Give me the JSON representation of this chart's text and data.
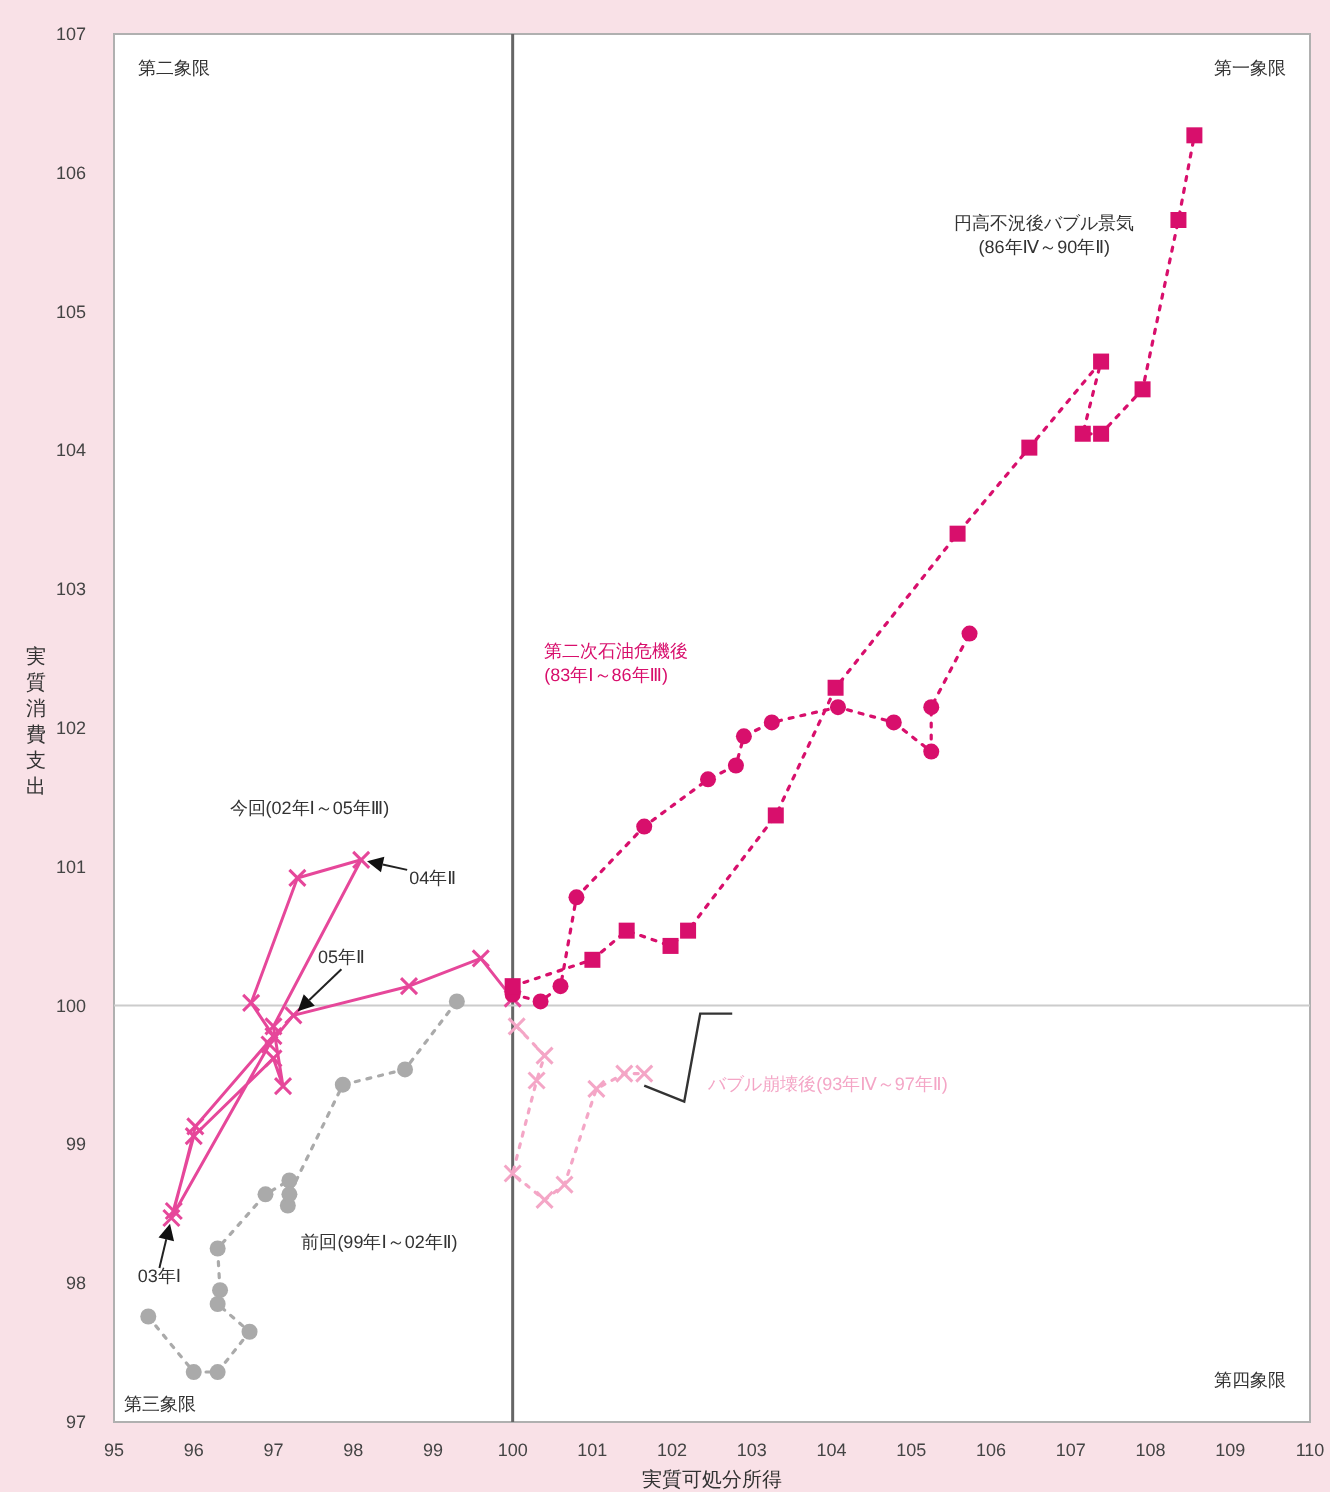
{
  "chart_data": {
    "type": "line",
    "xlabel": "実質可処分所得",
    "ylabel": "実質消費支出",
    "xlim": [
      95,
      110
    ],
    "ylim": [
      97,
      107
    ],
    "xticks": [
      95,
      96,
      97,
      98,
      99,
      100,
      101,
      102,
      103,
      104,
      105,
      106,
      107,
      108,
      109,
      110
    ],
    "yticks": [
      97,
      98,
      99,
      100,
      101,
      102,
      103,
      104,
      105,
      106,
      107
    ],
    "ref_lines": [
      {
        "axis": "x",
        "value": 100,
        "color": "#666666"
      },
      {
        "axis": "y",
        "value": 100,
        "color": "#cccccc"
      }
    ],
    "annotations": [
      "第二象限",
      "第一象限",
      "第三象限",
      "第四象限",
      {
        "text": "04年Ⅱ",
        "x": 98.1,
        "y": 101.05
      },
      {
        "text": "05年Ⅱ",
        "x": 97.25,
        "y": 99.93
      },
      {
        "text": "03年Ⅰ",
        "x": 95.72,
        "y": 98.47
      }
    ],
    "series": [
      {
        "name": "今回(02年Ⅰ～05年Ⅲ)",
        "color": "#e6479a",
        "marker": "cross",
        "line_style": "solid",
        "x": [
          95.75,
          96.02,
          97.0,
          96.72,
          97.3,
          98.1,
          97.0,
          97.12,
          97.0,
          96.0,
          95.72,
          96.95,
          97.25,
          98.7,
          99.6,
          100.0
        ],
        "values": [
          98.52,
          99.13,
          99.78,
          100.02,
          100.92,
          101.05,
          99.85,
          99.42,
          99.62,
          99.06,
          98.47,
          99.72,
          99.93,
          100.14,
          100.34,
          100.05
        ]
      },
      {
        "name": "前回(99年Ⅰ～02年Ⅱ)",
        "color": "#aaaaaa",
        "marker": "circle",
        "line_style": "dotted",
        "x": [
          95.43,
          96.0,
          96.3,
          96.7,
          96.3,
          96.33,
          96.3,
          96.9,
          97.2,
          97.18,
          97.2,
          97.87,
          98.65,
          99.3
        ],
        "values": [
          97.76,
          97.36,
          97.36,
          97.65,
          97.85,
          97.95,
          98.25,
          98.64,
          98.74,
          98.56,
          98.64,
          99.43,
          99.54,
          100.03
        ]
      },
      {
        "name": "第二次石油危機後\n(83年Ⅰ～86年Ⅲ)",
        "color": "#d80f6c",
        "marker": "circle",
        "line_style": "dotted",
        "x": [
          100.0,
          100.35,
          100.6,
          100.8,
          101.65,
          102.45,
          102.8,
          102.9,
          103.25,
          104.08,
          104.78,
          105.25,
          105.25,
          105.73
        ],
        "values": [
          100.08,
          100.03,
          100.14,
          100.78,
          101.29,
          101.63,
          101.73,
          101.94,
          102.04,
          102.15,
          102.04,
          101.83,
          102.15,
          102.68
        ]
      },
      {
        "name": "円高不況後バブル景気\n(86年Ⅳ～90年Ⅱ)",
        "color": "#d80f6c",
        "marker": "square",
        "line_style": "dotted",
        "x": [
          100.0,
          101.0,
          101.43,
          101.98,
          102.2,
          103.3,
          104.05,
          105.58,
          106.48,
          107.38,
          107.15,
          107.38,
          107.9,
          108.35,
          108.55
        ],
        "values": [
          100.14,
          100.33,
          100.54,
          100.43,
          100.54,
          101.37,
          102.29,
          103.4,
          104.02,
          104.64,
          104.12,
          104.12,
          104.44,
          105.66,
          106.27
        ]
      },
      {
        "name": "バブル崩壊後(93年Ⅳ～97年Ⅱ)",
        "color": "#f4a6c6",
        "marker": "cross",
        "line_style": "dotted",
        "x": [
          100.05,
          100.4,
          100.3,
          100.0,
          100.4,
          100.65,
          101.05,
          101.4,
          101.65
        ],
        "values": [
          99.85,
          99.64,
          99.46,
          98.79,
          98.6,
          98.71,
          99.4,
          99.51,
          99.51
        ]
      }
    ]
  }
}
